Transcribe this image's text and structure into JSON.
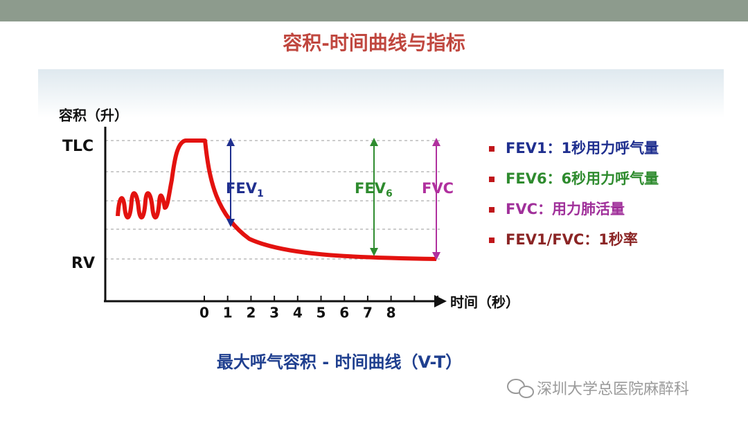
{
  "title": "容积-时间曲线与指标",
  "diagram": {
    "y_axis_label": "容积（升）",
    "x_axis_label": "时间（秒）",
    "y_levels": [
      "TLC",
      "RV"
    ],
    "x_ticks": [
      0,
      1,
      2,
      3,
      4,
      5,
      6,
      7,
      8
    ],
    "arrows": [
      {
        "text": "FEV",
        "sub": "1",
        "color": "#1f2f8f"
      },
      {
        "text": "FEV",
        "sub": "6",
        "color": "#2e8b2e"
      },
      {
        "text": "FVC",
        "color": "#b0309e"
      }
    ]
  },
  "legend": [
    {
      "text": "FEV1：1秒用力呼气量",
      "color": "#1f2f8f"
    },
    {
      "text": "FEV6：6秒用力呼气量",
      "color": "#2e8b2e"
    },
    {
      "text": "FVC：用力肺活量",
      "color": "#a0309a"
    },
    {
      "text": "FEV1/FVC：1秒率",
      "color": "#8b2525"
    }
  ],
  "caption": "最大呼气容积 - 时间曲线（V-T）",
  "watermark": "深圳大学总医院麻醉科"
}
